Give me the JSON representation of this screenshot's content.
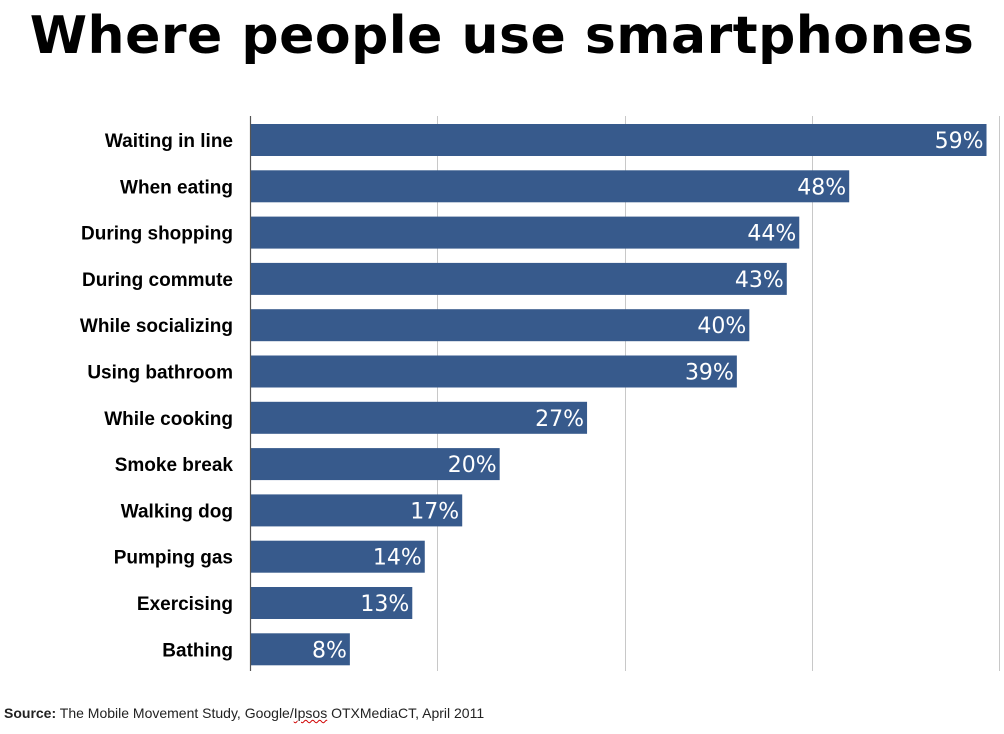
{
  "title": "Where people use smartphones",
  "source": {
    "label": "Source:",
    "text_before": "The Mobile Movement Study, Google/",
    "misspelled": "Ipsos",
    "text_after": " OTXMediaCT, April 2011"
  },
  "colors": {
    "bar": "#375a8c",
    "grid": "#c8c8c8",
    "axis": "#555555",
    "value_label": "#ffffff",
    "category_label": "#000000"
  },
  "chart_data": {
    "type": "bar",
    "orientation": "horizontal",
    "categories": [
      "Waiting in line",
      "When eating",
      "During shopping",
      "During commute",
      "While socializing",
      "Using bathroom",
      "While cooking",
      "Smoke break",
      "Walking dog",
      "Pumping gas",
      "Exercising",
      "Bathing"
    ],
    "values": [
      59,
      48,
      44,
      43,
      40,
      39,
      27,
      20,
      17,
      14,
      13,
      8
    ],
    "value_labels": [
      "59%",
      "48%",
      "44%",
      "43%",
      "40%",
      "39%",
      "27%",
      "20%",
      "17%",
      "14%",
      "13%",
      "8%"
    ],
    "xlim": [
      0,
      60
    ],
    "x_gridlines": [
      15,
      30,
      45,
      60
    ],
    "grid": true,
    "legend": "none",
    "xlabel": "",
    "ylabel": ""
  }
}
